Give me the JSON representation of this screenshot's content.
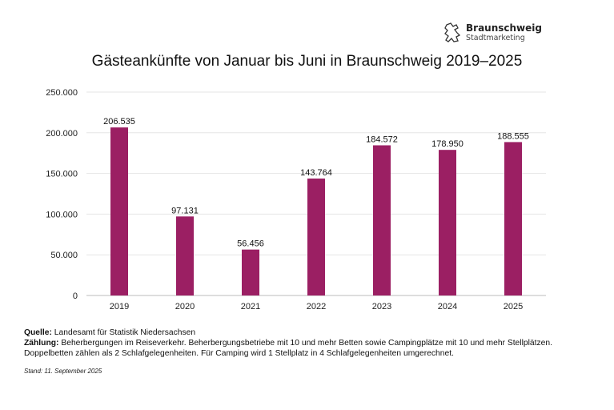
{
  "logo": {
    "name": "Braunschweig",
    "sub": "Stadtmarketing",
    "icon": "lion-icon"
  },
  "chart_data": {
    "type": "bar",
    "title": "Gästeankünfte von Januar bis Juni in Braunschweig 2019–2025",
    "categories": [
      "2019",
      "2020",
      "2021",
      "2022",
      "2023",
      "2024",
      "2025"
    ],
    "values": [
      206535,
      97131,
      56456,
      143764,
      184572,
      178950,
      188555
    ],
    "data_labels": [
      "206.535",
      "97.131",
      "56.456",
      "143.764",
      "184.572",
      "178.950",
      "188.555"
    ],
    "yticks": [
      0,
      50000,
      100000,
      150000,
      200000,
      250000
    ],
    "ytick_labels": [
      "0",
      "50.000",
      "100.000",
      "150.000",
      "200.000",
      "250.000"
    ],
    "ylim": [
      0,
      250000
    ],
    "grid": true,
    "bar_color": "#9b1f63"
  },
  "notes": {
    "source_label": "Quelle:",
    "source_text": "Landesamt für Statistik Niedersachsen",
    "count_label": "Zählung:",
    "count_text": "Beherbergungen im Reiseverkehr. Beherbergungsbetriebe mit 10 und mehr Betten sowie Campingplätze mit 10 und mehr Stellplätzen.",
    "count_text2": "Doppelbetten zählen als 2 Schlafgelegenheiten. Für Camping wird 1 Stellplatz in 4 Schlafgelegenheiten umgerechnet.",
    "stand": "Stand: 11. September 2025"
  }
}
